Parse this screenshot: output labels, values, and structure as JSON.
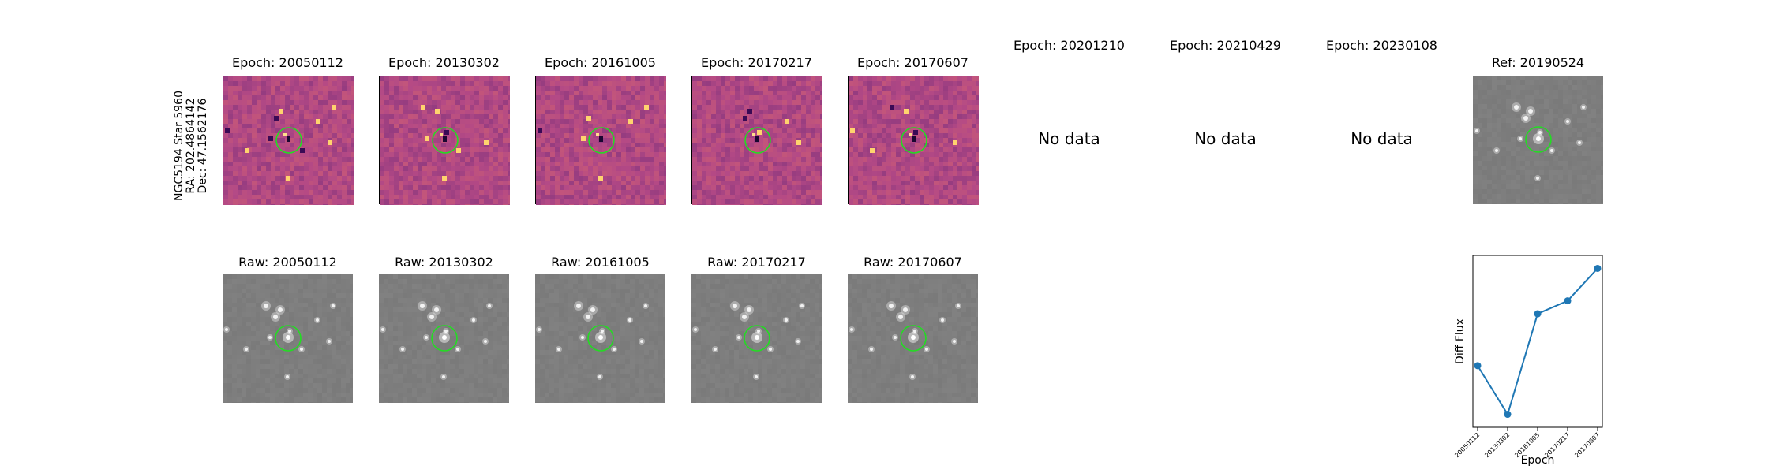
{
  "star_label": {
    "line1": "NGC5194 Star 5960",
    "line2": "RA: 202.4864142",
    "line3": "Dec: 47.1562176"
  },
  "diff_panels": [
    {
      "title": "Epoch: 20050112"
    },
    {
      "title": "Epoch: 20130302"
    },
    {
      "title": "Epoch: 20161005"
    },
    {
      "title": "Epoch: 20170217"
    },
    {
      "title": "Epoch: 20170607"
    }
  ],
  "missing_panels": [
    {
      "title": "Epoch: 20201210",
      "message": "No data"
    },
    {
      "title": "Epoch: 20210429",
      "message": "No data"
    },
    {
      "title": "Epoch: 20230108",
      "message": "No data"
    }
  ],
  "ref_panel": {
    "title": "Ref: 20190524"
  },
  "raw_panels": [
    {
      "title": "Raw: 20050112"
    },
    {
      "title": "Raw: 20130302"
    },
    {
      "title": "Raw: 20161005"
    },
    {
      "title": "Raw: 20170217"
    },
    {
      "title": "Raw: 20170607"
    }
  ],
  "colors": {
    "circle": "#22dd22",
    "line": "#1f77b4",
    "diff_bg": "#b44a86",
    "raw_bg": "#7a7a7a"
  },
  "chart_data": {
    "type": "line",
    "title": "",
    "xlabel": "Epoch",
    "ylabel": "Diff Flux",
    "categories": [
      "20050112",
      "20130302",
      "20161005",
      "20170217",
      "20170607"
    ],
    "series": [
      {
        "values": [
          0.42,
          0.12,
          0.74,
          0.82,
          1.02
        ]
      }
    ],
    "ylim": [
      0.04,
      1.1
    ],
    "grid": false
  }
}
